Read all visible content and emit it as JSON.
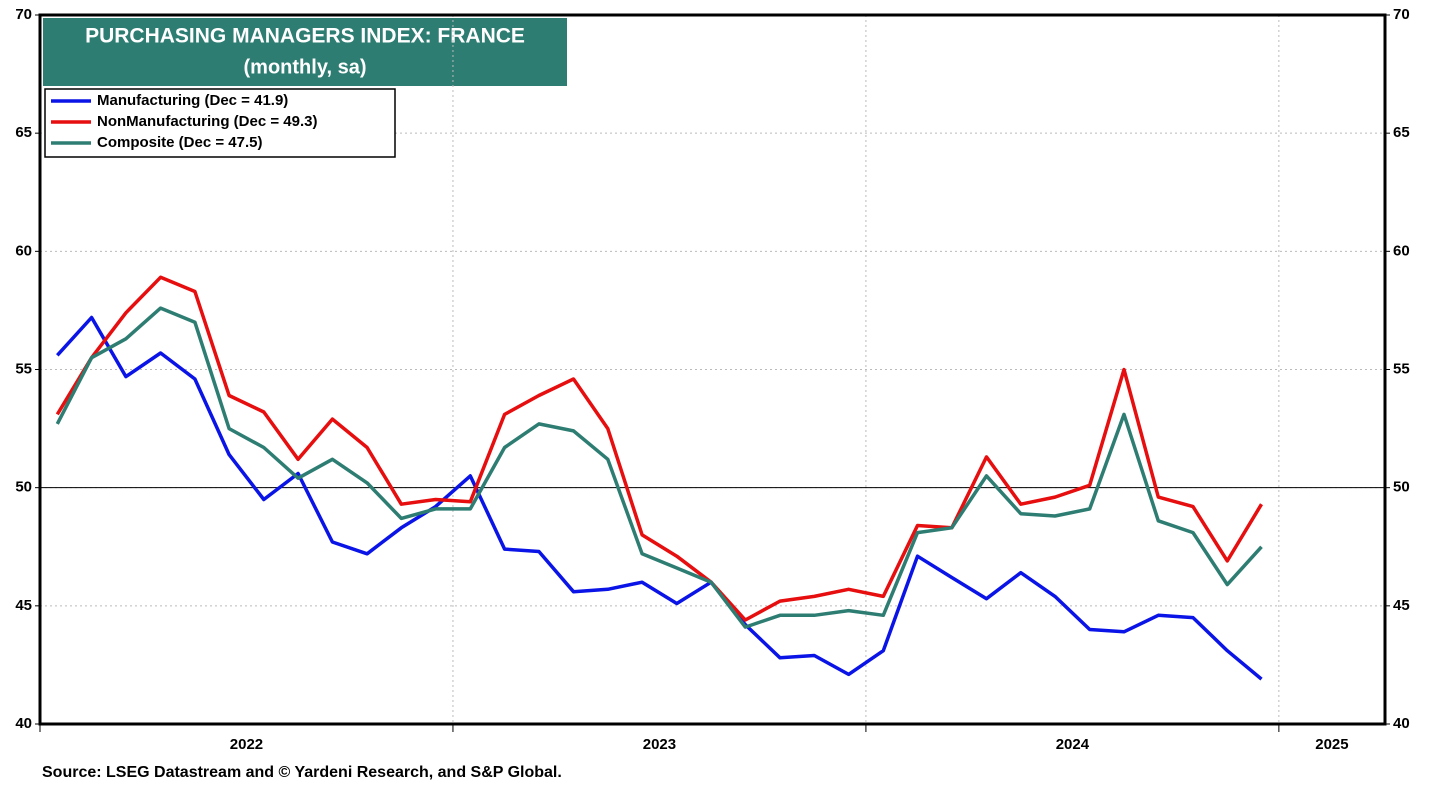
{
  "chart_data": {
    "type": "line",
    "title": "PURCHASING MANAGERS INDEX: FRANCE",
    "subtitle": "(monthly, sa)",
    "source": "Source: LSEG Datastream and © Yardeni Research, and S&P Global.",
    "x": [
      2022.042,
      2022.125,
      2022.208,
      2022.292,
      2022.375,
      2022.458,
      2022.542,
      2022.625,
      2022.708,
      2022.792,
      2022.875,
      2022.958,
      2023.042,
      2023.125,
      2023.208,
      2023.292,
      2023.375,
      2023.458,
      2023.542,
      2023.625,
      2023.708,
      2023.792,
      2023.875,
      2023.958,
      2024.042,
      2024.125,
      2024.208,
      2024.292,
      2024.375,
      2024.458,
      2024.542,
      2024.625,
      2024.708,
      2024.792,
      2024.875,
      2024.958
    ],
    "series": [
      {
        "name": "Manufacturing (Dec = 41.9)",
        "color": "#0a14e6",
        "values": [
          55.6,
          57.2,
          54.7,
          55.7,
          54.6,
          51.4,
          49.5,
          50.6,
          47.7,
          47.2,
          48.3,
          49.2,
          50.5,
          47.4,
          47.3,
          45.6,
          45.7,
          46.0,
          45.1,
          46.0,
          44.2,
          42.8,
          42.9,
          42.1,
          43.1,
          47.1,
          46.2,
          45.3,
          46.4,
          45.4,
          44.0,
          43.9,
          44.6,
          44.5,
          43.1,
          41.9
        ]
      },
      {
        "name": "NonManufacturing (Dec = 49.3)",
        "color": "#e60e0e",
        "values": [
          53.1,
          55.5,
          57.4,
          58.9,
          58.3,
          53.9,
          53.2,
          51.2,
          52.9,
          51.7,
          49.3,
          49.5,
          49.4,
          53.1,
          53.9,
          54.6,
          52.5,
          48.0,
          47.1,
          46.0,
          44.4,
          45.2,
          45.4,
          45.7,
          45.4,
          48.4,
          48.3,
          51.3,
          49.3,
          49.6,
          50.1,
          55.0,
          49.6,
          49.2,
          46.9,
          49.3
        ]
      },
      {
        "name": "Composite (Dec = 47.5)",
        "color": "#2e7d73",
        "values": [
          52.7,
          55.5,
          56.3,
          57.6,
          57.0,
          52.5,
          51.7,
          50.4,
          51.2,
          50.2,
          48.7,
          49.1,
          49.1,
          51.7,
          52.7,
          52.4,
          51.2,
          47.2,
          46.6,
          46.0,
          44.1,
          44.6,
          44.6,
          44.8,
          44.6,
          48.1,
          48.3,
          50.5,
          48.9,
          48.8,
          49.1,
          53.1,
          48.6,
          48.1,
          45.9,
          47.5
        ]
      }
    ],
    "xlim": [
      2022,
      2025.257
    ],
    "xticks": [
      2022,
      2023,
      2024,
      2025
    ],
    "ylim": [
      40,
      70
    ],
    "yticks": [
      40,
      45,
      50,
      55,
      60,
      65,
      70
    ],
    "y2lim": [
      40,
      70
    ],
    "reference_line": 50,
    "grid": true,
    "legend": "upper left"
  }
}
